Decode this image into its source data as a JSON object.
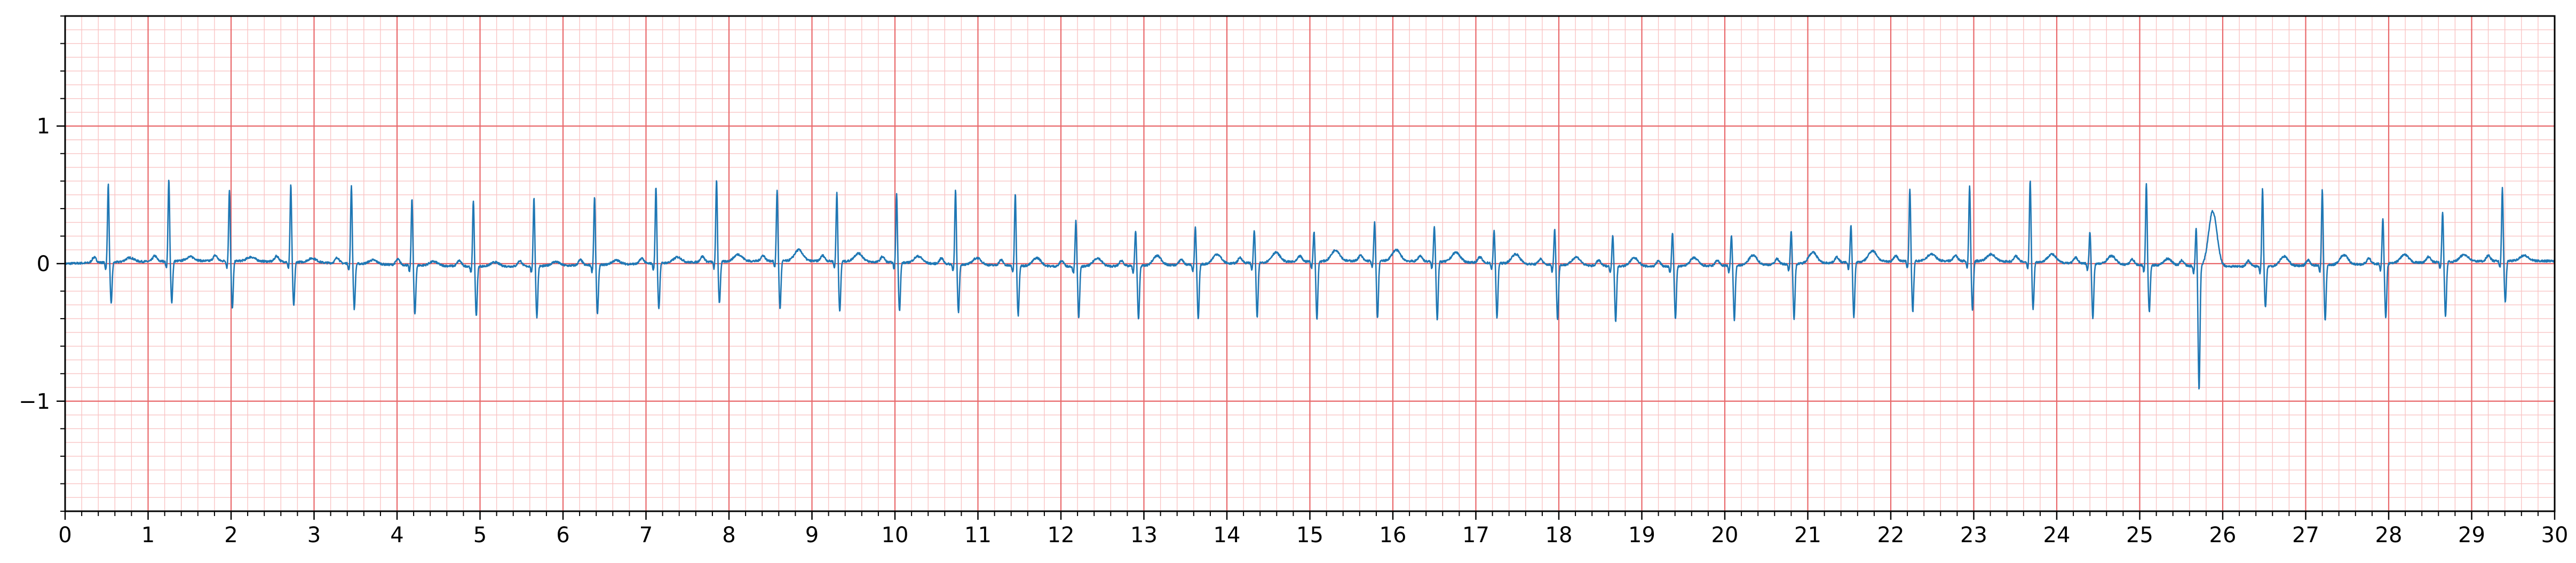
{
  "chart_data": {
    "type": "line",
    "title": "",
    "xlabel": "",
    "ylabel": "",
    "xlim": [
      0,
      30
    ],
    "ylim": [
      -1.8,
      1.8
    ],
    "x_ticks": [
      0,
      1,
      2,
      3,
      4,
      5,
      6,
      7,
      8,
      9,
      10,
      11,
      12,
      13,
      14,
      15,
      16,
      17,
      18,
      19,
      20,
      21,
      22,
      23,
      24,
      25,
      26,
      27,
      28,
      29,
      30
    ],
    "x_tick_labels": [
      "0",
      "1",
      "2",
      "3",
      "4",
      "5",
      "6",
      "7",
      "8",
      "9",
      "10",
      "11",
      "12",
      "13",
      "14",
      "15",
      "16",
      "17",
      "18",
      "19",
      "20",
      "21",
      "22",
      "23",
      "24",
      "25",
      "26",
      "27",
      "28",
      "29",
      "30"
    ],
    "y_ticks": [
      -1,
      0,
      1
    ],
    "y_tick_labels": [
      "−1",
      "0",
      "1"
    ],
    "grid": {
      "major_step_x": 1,
      "major_step_y": 1,
      "minor_step_x": 0.2,
      "minor_step_y": 0.1,
      "major_color": "#e8676a",
      "minor_color": "#f9c4c4"
    },
    "series": [
      {
        "color": "#1f77b4",
        "beats": [
          {
            "t": 0.52,
            "r": 0.57,
            "s": -0.3,
            "tw": 0.03
          },
          {
            "t": 1.25,
            "r": 0.6,
            "s": -0.3,
            "tw": 0.03
          },
          {
            "t": 1.98,
            "r": 0.52,
            "s": -0.35,
            "tw": 0.03
          },
          {
            "t": 2.72,
            "r": 0.56,
            "s": -0.32,
            "tw": 0.03
          },
          {
            "t": 3.45,
            "r": 0.57,
            "s": -0.33,
            "tw": 0.03
          },
          {
            "t": 4.18,
            "r": 0.49,
            "s": -0.36,
            "tw": 0.03
          },
          {
            "t": 4.92,
            "r": 0.48,
            "s": -0.36,
            "tw": 0.03
          },
          {
            "t": 5.65,
            "r": 0.5,
            "s": -0.37,
            "tw": 0.03
          },
          {
            "t": 6.38,
            "r": 0.5,
            "s": -0.36,
            "tw": 0.03
          },
          {
            "t": 7.12,
            "r": 0.56,
            "s": -0.33,
            "tw": 0.04
          },
          {
            "t": 7.85,
            "r": 0.6,
            "s": -0.3,
            "tw": 0.05
          },
          {
            "t": 8.58,
            "r": 0.52,
            "s": -0.35,
            "tw": 0.08
          },
          {
            "t": 9.3,
            "r": 0.5,
            "s": -0.37,
            "tw": 0.06
          },
          {
            "t": 10.02,
            "r": 0.5,
            "s": -0.35,
            "tw": 0.05
          },
          {
            "t": 10.73,
            "r": 0.54,
            "s": -0.35,
            "tw": 0.05
          },
          {
            "t": 11.45,
            "r": 0.53,
            "s": -0.36,
            "tw": 0.06
          },
          {
            "t": 12.18,
            "r": 0.33,
            "s": -0.37,
            "tw": 0.06
          },
          {
            "t": 12.9,
            "r": 0.26,
            "s": -0.39,
            "tw": 0.07
          },
          {
            "t": 13.62,
            "r": 0.27,
            "s": -0.4,
            "tw": 0.07
          },
          {
            "t": 14.33,
            "r": 0.24,
            "s": -0.4,
            "tw": 0.07
          },
          {
            "t": 15.05,
            "r": 0.22,
            "s": -0.42,
            "tw": 0.08
          },
          {
            "t": 15.78,
            "r": 0.28,
            "s": -0.42,
            "tw": 0.08
          },
          {
            "t": 16.5,
            "r": 0.26,
            "s": -0.42,
            "tw": 0.07
          },
          {
            "t": 17.22,
            "r": 0.24,
            "s": -0.4,
            "tw": 0.07
          },
          {
            "t": 17.95,
            "r": 0.26,
            "s": -0.4,
            "tw": 0.06
          },
          {
            "t": 18.65,
            "r": 0.23,
            "s": -0.4,
            "tw": 0.06
          },
          {
            "t": 19.37,
            "r": 0.25,
            "s": -0.38,
            "tw": 0.06
          },
          {
            "t": 20.08,
            "r": 0.22,
            "s": -0.4,
            "tw": 0.07
          },
          {
            "t": 20.8,
            "r": 0.24,
            "s": -0.4,
            "tw": 0.08
          },
          {
            "t": 21.52,
            "r": 0.27,
            "s": -0.4,
            "tw": 0.08
          },
          {
            "t": 22.23,
            "r": 0.53,
            "s": -0.37,
            "tw": 0.05
          },
          {
            "t": 22.95,
            "r": 0.55,
            "s": -0.36,
            "tw": 0.05
          },
          {
            "t": 23.68,
            "r": 0.6,
            "s": -0.34,
            "tw": 0.06
          },
          {
            "t": 24.4,
            "r": 0.23,
            "s": -0.4,
            "tw": 0.06
          },
          {
            "t": 25.08,
            "r": 0.6,
            "s": -0.34,
            "tw": 0.05
          },
          {
            "t": 25.68,
            "r": 0.28,
            "s": -0.9,
            "tw": 0.4,
            "tdelay": 0.2
          },
          {
            "t": 26.48,
            "r": 0.57,
            "s": -0.3,
            "tw": 0.07
          },
          {
            "t": 27.2,
            "r": 0.55,
            "s": -0.4,
            "tw": 0.07
          },
          {
            "t": 27.93,
            "r": 0.33,
            "s": -0.4,
            "tw": 0.06
          },
          {
            "t": 28.65,
            "r": 0.37,
            "s": -0.4,
            "tw": 0.05
          },
          {
            "t": 29.37,
            "r": 0.53,
            "s": -0.3,
            "tw": 0.04
          }
        ]
      }
    ]
  }
}
